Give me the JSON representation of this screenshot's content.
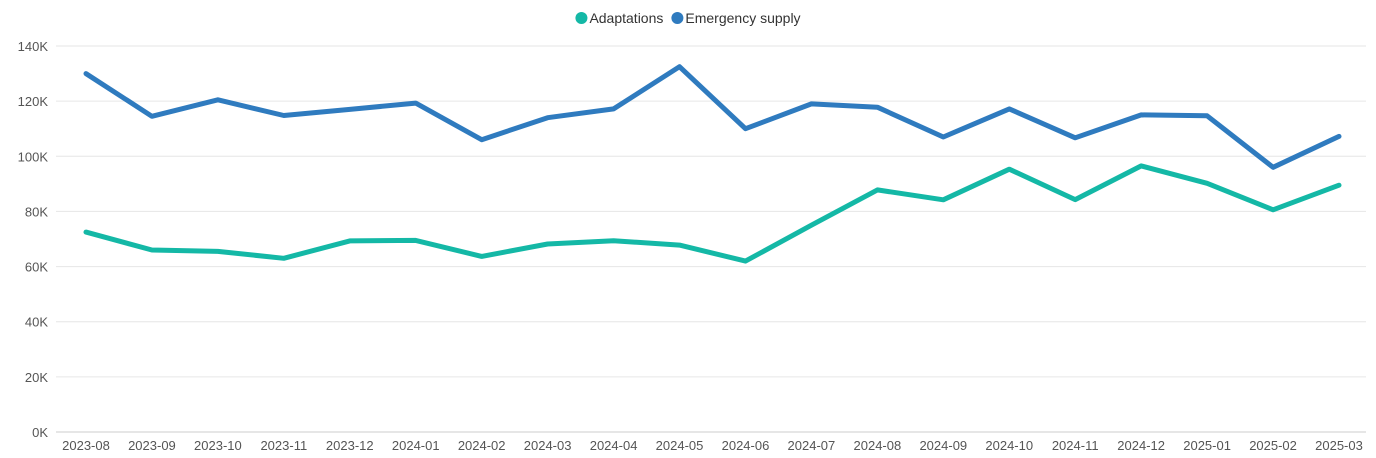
{
  "chart_data": {
    "type": "line",
    "categories": [
      "2023-08",
      "2023-09",
      "2023-10",
      "2023-11",
      "2023-12",
      "2024-01",
      "2024-02",
      "2024-03",
      "2024-04",
      "2024-05",
      "2024-06",
      "2024-07",
      "2024-08",
      "2024-09",
      "2024-10",
      "2024-11",
      "2024-12",
      "2025-01",
      "2025-02",
      "2025-03"
    ],
    "series": [
      {
        "name": "Adaptations",
        "color": "#14b8a6",
        "values": [
          72500,
          66000,
          65500,
          63000,
          69300,
          69500,
          63700,
          68200,
          69400,
          67800,
          62000,
          75000,
          87800,
          84200,
          95300,
          84300,
          96500,
          90200,
          80600,
          89500
        ]
      },
      {
        "name": "Emergency supply",
        "color": "#2f7bbf",
        "values": [
          130000,
          114500,
          120500,
          114800,
          117000,
          119300,
          106000,
          114000,
          117200,
          132500,
          110000,
          119000,
          117800,
          107000,
          117200,
          106700,
          115000,
          114700,
          96000,
          107200
        ]
      }
    ],
    "yticks": [
      "0K",
      "20K",
      "40K",
      "60K",
      "80K",
      "100K",
      "120K",
      "140K"
    ],
    "ylim": [
      0,
      140000
    ],
    "grid": true,
    "legend_position": "top-center",
    "title": "",
    "xlabel": "",
    "ylabel": ""
  }
}
